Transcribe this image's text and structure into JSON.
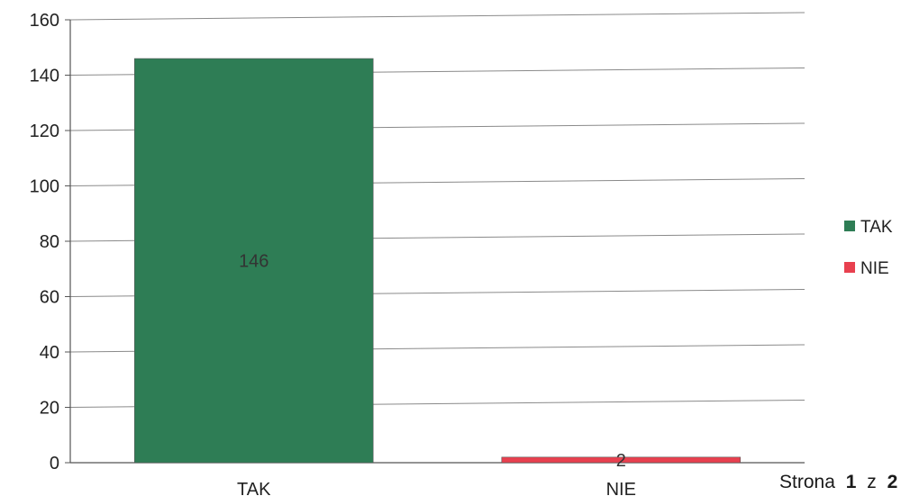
{
  "chart_data": {
    "type": "bar",
    "categories": [
      "TAK",
      "NIE"
    ],
    "values": [
      146,
      2
    ],
    "data_labels": [
      "146",
      "2"
    ],
    "colors": [
      "#2e7d55",
      "#e8404f"
    ],
    "ylim": [
      0,
      160
    ],
    "yticks": [
      "0",
      "20",
      "40",
      "60",
      "80",
      "100",
      "120",
      "140",
      "160"
    ],
    "grid": true,
    "legend": {
      "position": "right",
      "entries": [
        "TAK",
        "NIE"
      ]
    }
  },
  "footer": {
    "prefix": "Strona",
    "current": "1",
    "separator": "z",
    "total": "2"
  }
}
